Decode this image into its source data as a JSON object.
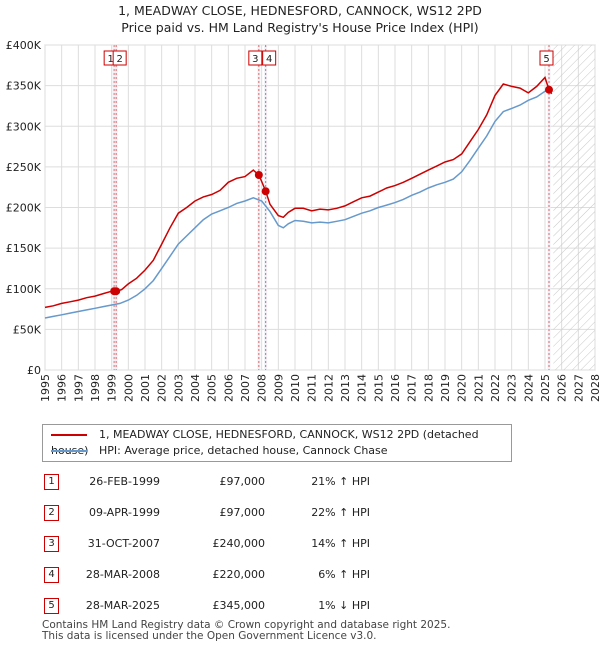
{
  "title_line1": "1, MEADWAY CLOSE, HEDNESFORD, CANNOCK, WS12 2PD",
  "title_line2": "Price paid vs. HM Land Registry's House Price Index (HPI)",
  "colors": {
    "property": "#cc0000",
    "hpi": "#6699cc",
    "marker_border": "#cc0000"
  },
  "legend": {
    "property_label": "1, MEADWAY CLOSE, HEDNESFORD, CANNOCK, WS12 2PD (detached house)",
    "hpi_label": "HPI: Average price, detached house, Cannock Chase"
  },
  "transactions": [
    {
      "num": "1",
      "date": "26-FEB-1999",
      "price": "£97,000",
      "pct": "21% ↑ HPI"
    },
    {
      "num": "2",
      "date": "09-APR-1999",
      "price": "£97,000",
      "pct": "22% ↑ HPI"
    },
    {
      "num": "3",
      "date": "31-OCT-2007",
      "price": "£240,000",
      "pct": "14% ↑ HPI"
    },
    {
      "num": "4",
      "date": "28-MAR-2008",
      "price": "£220,000",
      "pct": "6% ↑ HPI"
    },
    {
      "num": "5",
      "date": "28-MAR-2025",
      "price": "£345,000",
      "pct": "1% ↓ HPI"
    }
  ],
  "footer_line1": "Contains HM Land Registry data © Crown copyright and database right 2025.",
  "footer_line2": "This data is licensed under the Open Government Licence v3.0.",
  "chart_data": {
    "type": "line",
    "title": "1, MEADWAY CLOSE, HEDNESFORD, CANNOCK, WS12 2PD",
    "subtitle": "Price paid vs. HM Land Registry's House Price Index (HPI)",
    "xlim": [
      1995,
      2028
    ],
    "ylim": [
      0,
      400000
    ],
    "y_ticks": [
      0,
      50000,
      100000,
      150000,
      200000,
      250000,
      300000,
      350000,
      400000
    ],
    "y_tick_labels": [
      "£0",
      "£50K",
      "£100K",
      "£150K",
      "£200K",
      "£250K",
      "£300K",
      "£350K",
      "£400K"
    ],
    "x_ticks": [
      1995,
      1996,
      1997,
      1998,
      1999,
      2000,
      2001,
      2002,
      2003,
      2004,
      2005,
      2006,
      2007,
      2008,
      2009,
      2010,
      2011,
      2012,
      2013,
      2014,
      2015,
      2016,
      2017,
      2018,
      2019,
      2020,
      2021,
      2022,
      2023,
      2024,
      2025,
      2026,
      2027,
      2028
    ],
    "grid": true,
    "future_hatch_from": 2025.5,
    "series": [
      {
        "name": "1, MEADWAY CLOSE, HEDNESFORD, CANNOCK, WS12 2PD (detached house)",
        "color": "#cc0000",
        "x": [
          1995.0,
          1995.5,
          1996.0,
          1996.5,
          1997.0,
          1997.5,
          1998.0,
          1998.5,
          1999.0,
          1999.3,
          1999.6,
          2000.0,
          2000.5,
          2001.0,
          2001.5,
          2002.0,
          2002.5,
          2003.0,
          2003.5,
          2004.0,
          2004.5,
          2005.0,
          2005.5,
          2006.0,
          2006.5,
          2007.0,
          2007.5,
          2007.83,
          2008.0,
          2008.24,
          2008.5,
          2009.0,
          2009.3,
          2009.6,
          2010.0,
          2010.5,
          2011.0,
          2011.5,
          2012.0,
          2012.5,
          2013.0,
          2013.5,
          2014.0,
          2014.5,
          2015.0,
          2015.5,
          2016.0,
          2016.5,
          2017.0,
          2017.5,
          2018.0,
          2018.5,
          2019.0,
          2019.5,
          2020.0,
          2020.5,
          2021.0,
          2021.5,
          2022.0,
          2022.5,
          2023.0,
          2023.5,
          2024.0,
          2024.5,
          2025.0,
          2025.24,
          2025.4
        ],
        "values": [
          77000,
          79000,
          82000,
          84000,
          86000,
          89000,
          91000,
          94000,
          97000,
          97000,
          99000,
          106000,
          113000,
          123000,
          135000,
          155000,
          175000,
          193000,
          200000,
          208000,
          213000,
          216000,
          221000,
          231000,
          236000,
          238000,
          246000,
          240000,
          232000,
          220000,
          204000,
          190000,
          188000,
          194000,
          199000,
          199000,
          196000,
          198000,
          197000,
          199000,
          202000,
          207000,
          212000,
          214000,
          219000,
          224000,
          227000,
          231000,
          236000,
          241000,
          246000,
          251000,
          256000,
          259000,
          266000,
          281000,
          296000,
          314000,
          338000,
          352000,
          349000,
          347000,
          341000,
          349000,
          360000,
          345000,
          340000
        ]
      },
      {
        "name": "HPI: Average price, detached house, Cannock Chase",
        "color": "#6699cc",
        "x": [
          1995.0,
          1995.5,
          1996.0,
          1996.5,
          1997.0,
          1997.5,
          1998.0,
          1998.5,
          1999.0,
          1999.5,
          2000.0,
          2000.5,
          2001.0,
          2001.5,
          2002.0,
          2002.5,
          2003.0,
          2003.5,
          2004.0,
          2004.5,
          2005.0,
          2005.5,
          2006.0,
          2006.5,
          2007.0,
          2007.5,
          2008.0,
          2008.5,
          2009.0,
          2009.3,
          2009.6,
          2010.0,
          2010.5,
          2011.0,
          2011.5,
          2012.0,
          2012.5,
          2013.0,
          2013.5,
          2014.0,
          2014.5,
          2015.0,
          2015.5,
          2016.0,
          2016.5,
          2017.0,
          2017.5,
          2018.0,
          2018.5,
          2019.0,
          2019.5,
          2020.0,
          2020.5,
          2021.0,
          2021.5,
          2022.0,
          2022.5,
          2023.0,
          2023.5,
          2024.0,
          2024.5,
          2025.0,
          2025.4
        ],
        "values": [
          64000,
          66000,
          68000,
          70000,
          72000,
          74000,
          76000,
          78000,
          80000,
          82000,
          86000,
          92000,
          100000,
          110000,
          125000,
          140000,
          155000,
          165000,
          175000,
          185000,
          192000,
          196000,
          200000,
          205000,
          208000,
          212000,
          208000,
          195000,
          178000,
          175000,
          180000,
          184000,
          183000,
          181000,
          182000,
          181000,
          183000,
          185000,
          189000,
          193000,
          196000,
          200000,
          203000,
          206000,
          210000,
          215000,
          219000,
          224000,
          228000,
          231000,
          235000,
          244000,
          258000,
          273000,
          288000,
          306000,
          318000,
          322000,
          326000,
          332000,
          336000,
          343000,
          347000
        ]
      }
    ],
    "sales": [
      {
        "num": "1",
        "x": 1999.15,
        "price": 97000,
        "label_x": 1999.15
      },
      {
        "num": "2",
        "x": 1999.27,
        "price": 97000,
        "label_x": 1999.27
      },
      {
        "num": "3",
        "x": 2007.83,
        "price": 240000,
        "label_x": 2007.83
      },
      {
        "num": "4",
        "x": 2008.24,
        "price": 220000,
        "label_x": 2008.24
      },
      {
        "num": "5",
        "x": 2025.24,
        "price": 345000,
        "label_x": 2025.24
      }
    ]
  }
}
